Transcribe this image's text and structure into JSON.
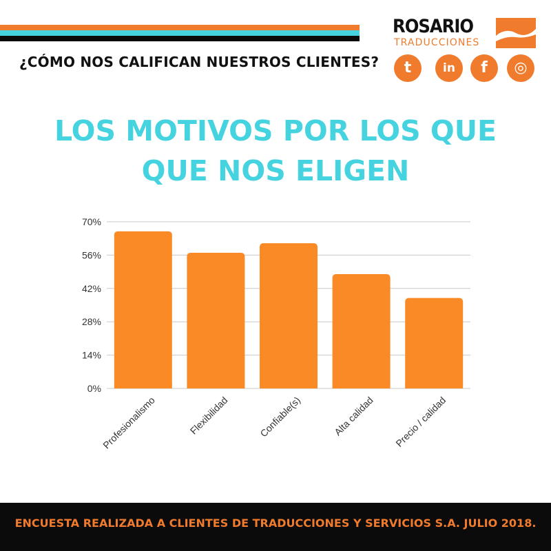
{
  "header": {
    "subtitle": "¿CÓMO NOS CALIFICAN NUESTROS CLIENTES?",
    "logo_word": "ROSARIO",
    "logo_sub": "TRADUCCIONES"
  },
  "social": {
    "twitter_glyph": "t",
    "linkedin_glyph": "in",
    "facebook_glyph": "f",
    "instagram_glyph": "◎"
  },
  "headline": {
    "line1": "LOS MOTIVOS POR LOS QUE",
    "line2": "QUE NOS ELIGEN"
  },
  "colors": {
    "orange": "#f07b2c",
    "cyan": "#46d3e0",
    "black": "#0b0b0b",
    "bar": "#f98a25"
  },
  "chart_data": {
    "type": "bar",
    "categories": [
      "Profesionalismo",
      "Flexibilidad",
      "Confiable(s)",
      "Alta calidad",
      "Precio / calidad"
    ],
    "values": [
      66,
      57,
      61,
      48,
      38
    ],
    "ylim": [
      0,
      70
    ],
    "yticks": [
      "0%",
      "14%",
      "28%",
      "42%",
      "56%",
      "70%"
    ],
    "ytick_values": [
      0,
      14,
      28,
      42,
      56,
      70
    ],
    "grid": true
  },
  "footer": {
    "text": "ENCUESTA REALIZADA A CLIENTES DE TRADUCCIONES Y SERVICIOS S.A. JULIO 2018."
  }
}
